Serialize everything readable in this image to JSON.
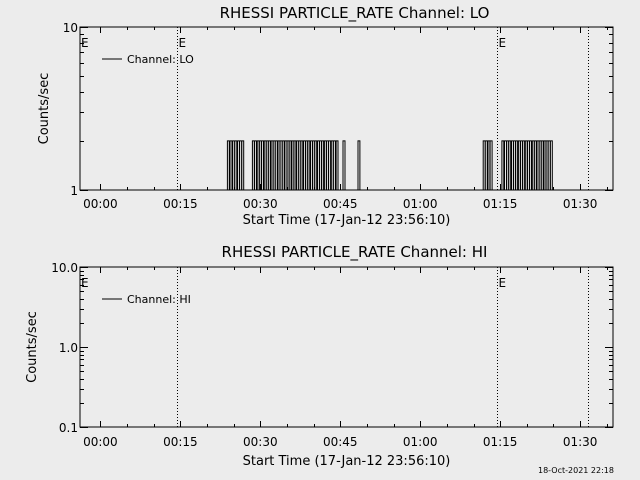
{
  "timestamp": "18-Oct-2021 22:18",
  "chart_data": [
    {
      "type": "line",
      "title": "RHESSI PARTICLE_RATE Channel: LO",
      "xlabel": "Start Time (17-Jan-12 23:56:10)",
      "ylabel": "Counts/sec",
      "x_ticks": [
        "00:00",
        "00:15",
        "00:30",
        "00:45",
        "01:00",
        "01:15",
        "01:30"
      ],
      "x_tick_minutes": [
        0,
        15,
        30,
        45,
        60,
        75,
        90
      ],
      "xlim_minutes": [
        -3.83,
        96.17
      ],
      "y_scale": "log",
      "ylim": [
        1,
        10
      ],
      "y_ticks": [
        "1",
        "10"
      ],
      "y_tick_values": [
        1,
        10
      ],
      "markers": [
        {
          "minute": 14.4,
          "label": "E"
        },
        {
          "minute": 74.5,
          "label": "E"
        },
        {
          "minute": 91.4,
          "label": ""
        }
      ],
      "e_label_left": "E",
      "legend": "Channel: LO",
      "series": [
        {
          "name": "Channel: LO",
          "pulse_base": 1,
          "pulse_peak": 2,
          "pulse_minutes": [
            24.0,
            24.5,
            25.0,
            25.4,
            25.9,
            26.3,
            26.7,
            28.7,
            29.1,
            29.6,
            30.0,
            30.4,
            30.9,
            31.3,
            31.7,
            32.2,
            32.6,
            33.0,
            33.5,
            33.9,
            34.3,
            34.8,
            35.2,
            35.6,
            36.1,
            36.5,
            37.0,
            37.4,
            37.8,
            38.3,
            38.7,
            39.1,
            39.6,
            40.0,
            40.4,
            40.9,
            41.3,
            41.7,
            42.2,
            42.6,
            43.0,
            43.5,
            43.9,
            44.4,
            45.7,
            48.5,
            72.0,
            72.4,
            72.9,
            73.3,
            75.5,
            76.0,
            76.4,
            76.8,
            77.3,
            77.7,
            78.1,
            78.6,
            79.0,
            79.4,
            79.9,
            80.3,
            80.7,
            81.2,
            81.6,
            82.1,
            82.5,
            82.9,
            83.4,
            83.8,
            84.2,
            84.6
          ]
        }
      ]
    },
    {
      "type": "line",
      "title": "RHESSI PARTICLE_RATE Channel: HI",
      "xlabel": "Start Time (17-Jan-12 23:56:10)",
      "ylabel": "Counts/sec",
      "x_ticks": [
        "00:00",
        "00:15",
        "00:30",
        "00:45",
        "01:00",
        "01:15",
        "01:30"
      ],
      "x_tick_minutes": [
        0,
        15,
        30,
        45,
        60,
        75,
        90
      ],
      "xlim_minutes": [
        -3.83,
        96.17
      ],
      "y_scale": "log",
      "ylim": [
        0.1,
        10
      ],
      "y_ticks": [
        "0.1",
        "1.0",
        "10.0"
      ],
      "y_tick_values": [
        0.1,
        1,
        10
      ],
      "markers": [
        {
          "minute": 14.4,
          "label": ""
        },
        {
          "minute": 74.5,
          "label": "E"
        },
        {
          "minute": 91.4,
          "label": ""
        }
      ],
      "e_label_left": "E",
      "legend": "Channel: HI",
      "series": [
        {
          "name": "Channel: HI",
          "pulse_minutes": []
        }
      ]
    }
  ]
}
